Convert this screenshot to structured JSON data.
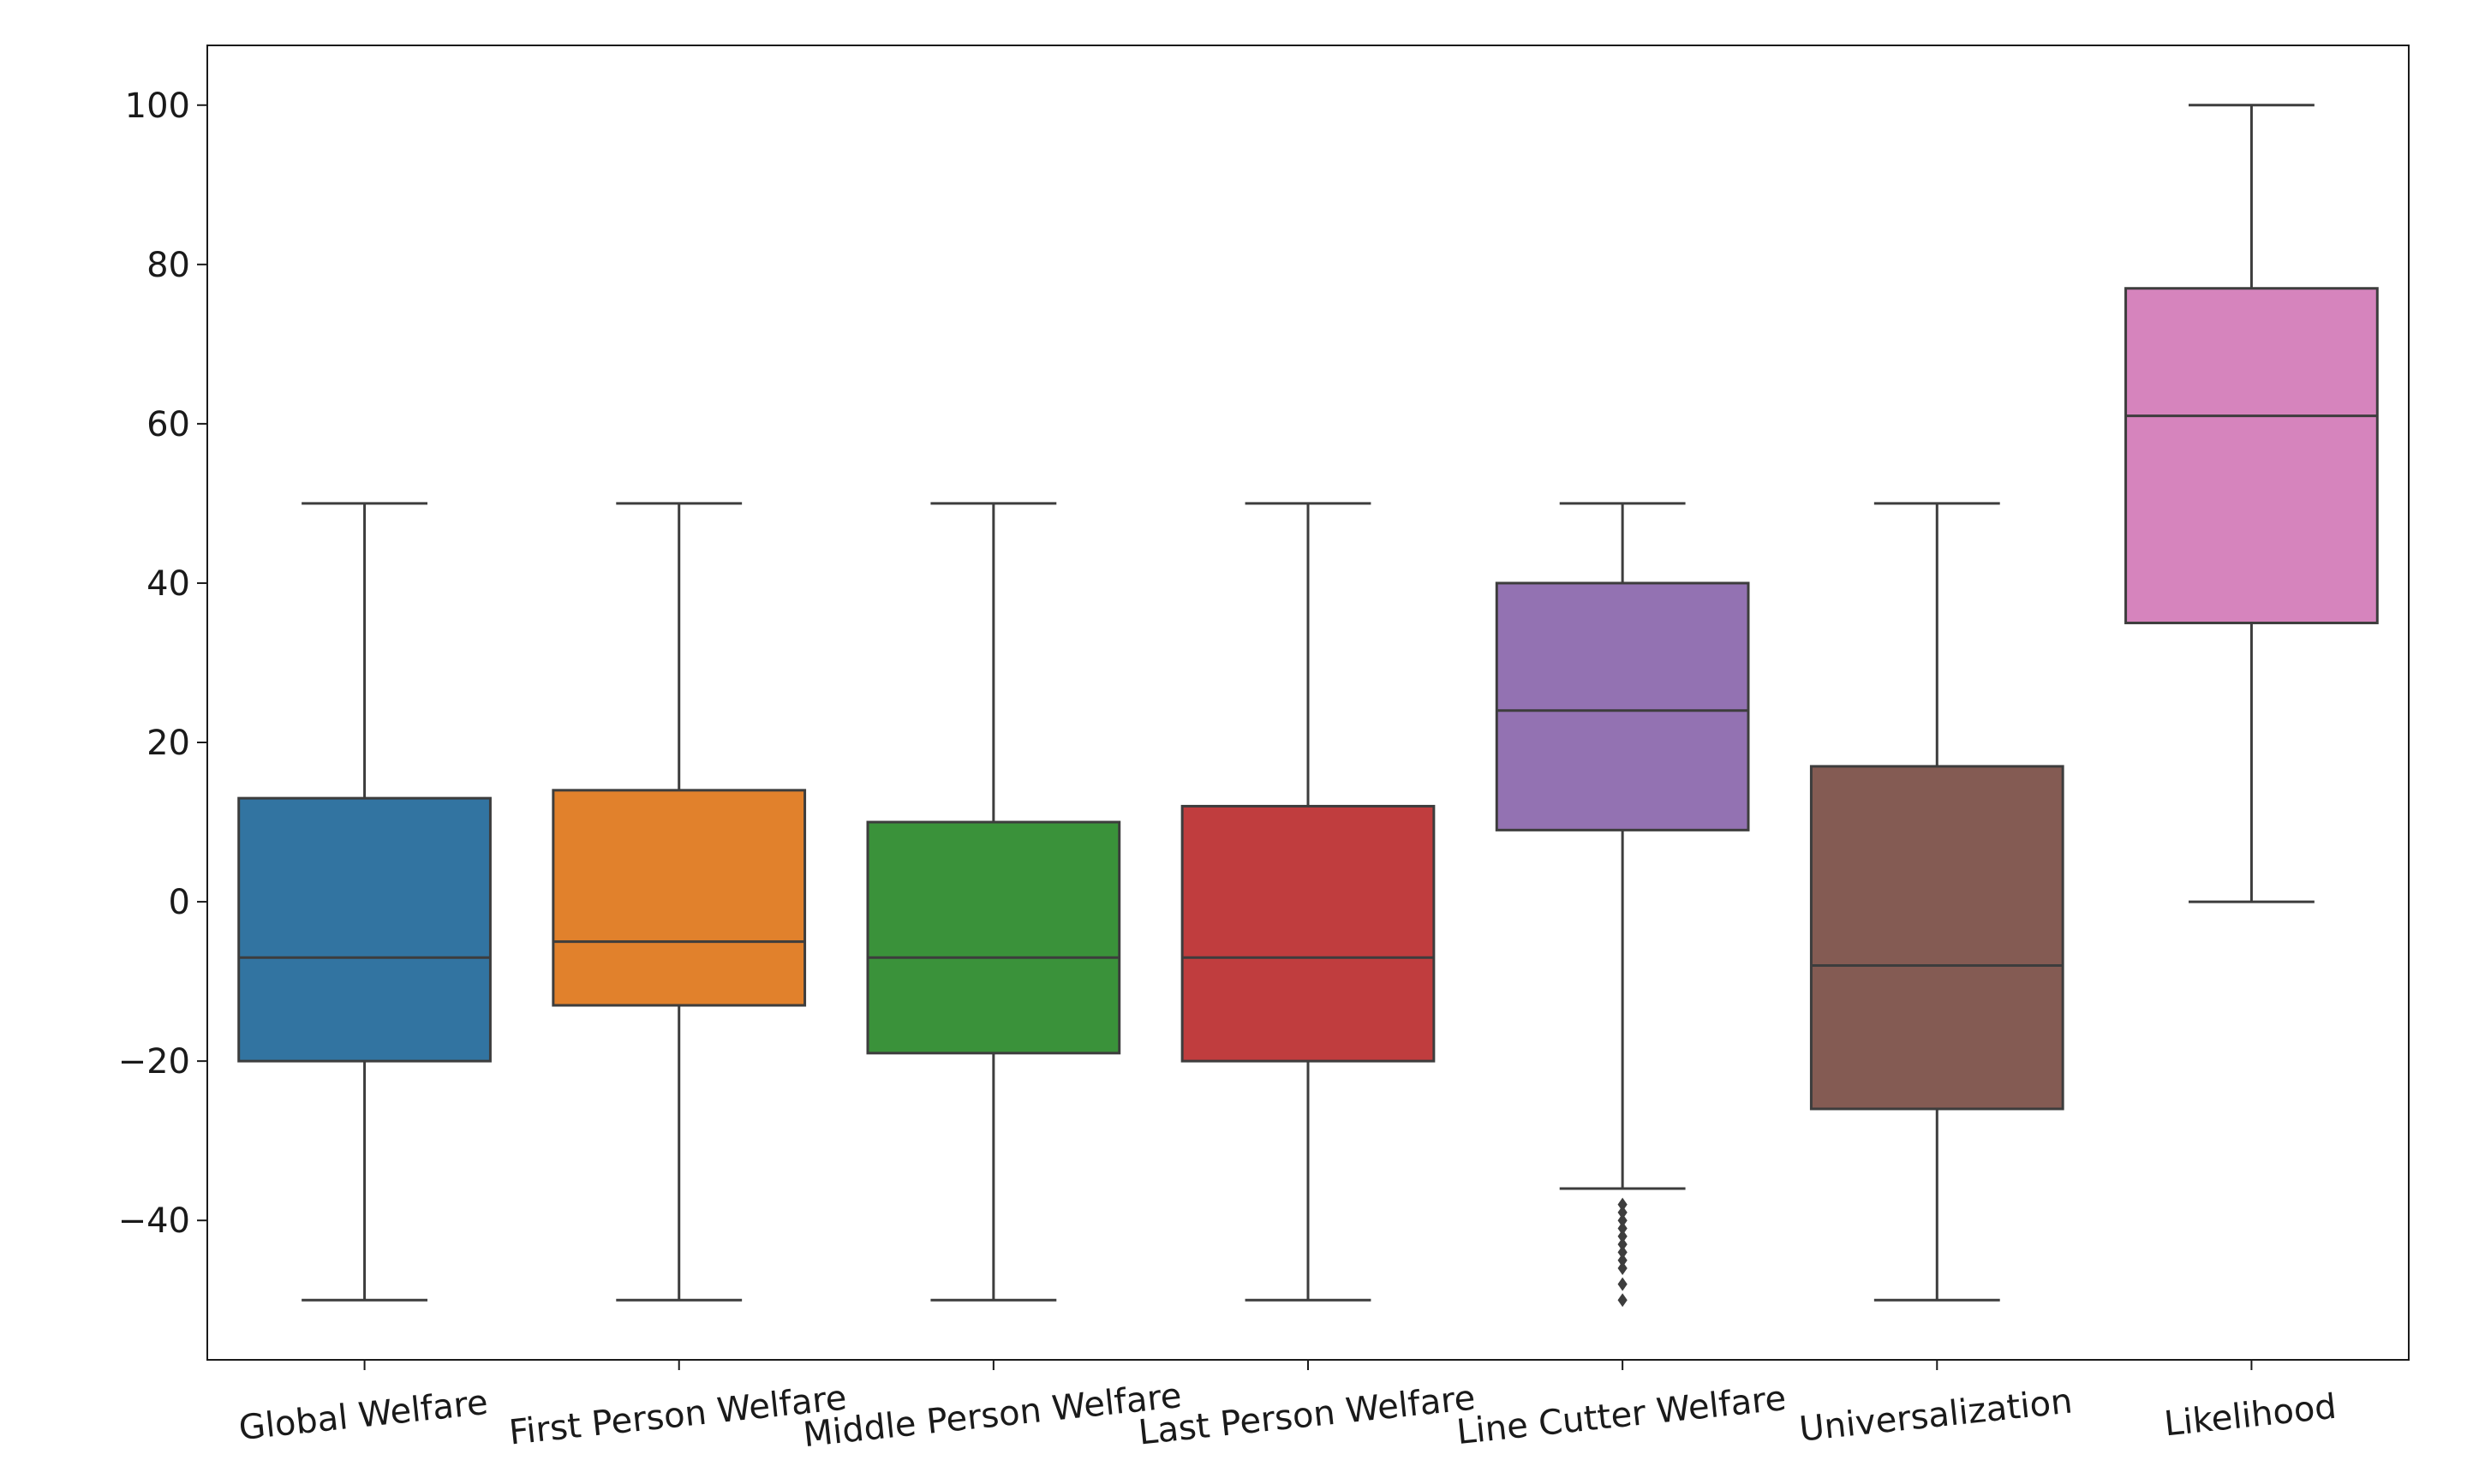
{
  "chart_data": {
    "type": "box",
    "title": "",
    "xlabel": "",
    "ylabel": "",
    "ylim": [
      -57.5,
      107.5
    ],
    "yticks": [
      -40,
      -20,
      0,
      20,
      40,
      60,
      80,
      100
    ],
    "ytick_labels": [
      "−40",
      "−20",
      "0",
      "20",
      "40",
      "60",
      "80",
      "100"
    ],
    "grid": false,
    "legend": "none",
    "categories": [
      "Global Welfare",
      "First Person Welfare",
      "Middle Person Welfare",
      "Last Person Welfare",
      "Line Cutter Welfare",
      "Universalization",
      "Likelihood"
    ],
    "boxes": [
      {
        "whisker_low": -50,
        "q1": -20,
        "median": -7,
        "q3": 13,
        "whisker_high": 50,
        "outliers": [],
        "color": "#3274a1"
      },
      {
        "whisker_low": -50,
        "q1": -13,
        "median": -5,
        "q3": 14,
        "whisker_high": 50,
        "outliers": [],
        "color": "#e1812c"
      },
      {
        "whisker_low": -50,
        "q1": -19,
        "median": -7,
        "q3": 10,
        "whisker_high": 50,
        "outliers": [],
        "color": "#3a923a"
      },
      {
        "whisker_low": -50,
        "q1": -20,
        "median": -7,
        "q3": 12,
        "whisker_high": 50,
        "outliers": [],
        "color": "#c03d3e"
      },
      {
        "whisker_low": -36,
        "q1": 9,
        "median": 24,
        "q3": 40,
        "whisker_high": 50,
        "outliers": [
          -38,
          -39,
          -40,
          -41,
          -42,
          -43,
          -44,
          -45,
          -46,
          -48,
          -50
        ],
        "color": "#9372b2"
      },
      {
        "whisker_low": -50,
        "q1": -26,
        "median": -8,
        "q3": 17,
        "whisker_high": 50,
        "outliers": [],
        "color": "#845b53"
      },
      {
        "whisker_low": 0,
        "q1": 35,
        "median": 61,
        "q3": 77,
        "whisker_high": 100,
        "outliers": [],
        "color": "#d684bd"
      }
    ],
    "line_color": "#3d3d3d"
  }
}
